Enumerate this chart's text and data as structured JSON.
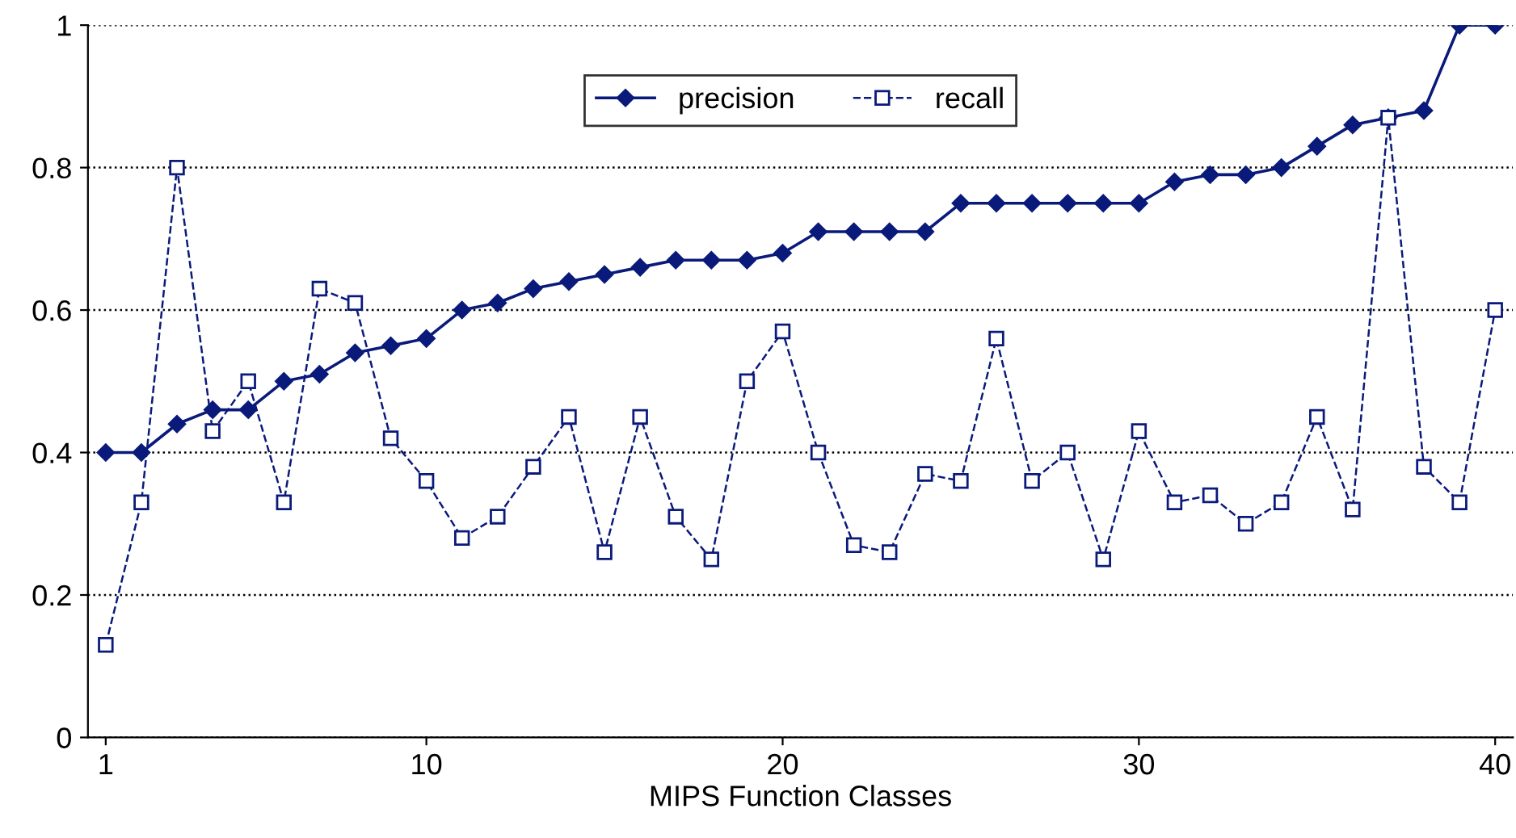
{
  "chart_data": {
    "type": "line",
    "xlabel": "MIPS Function Classes",
    "x": [
      1,
      2,
      3,
      4,
      5,
      6,
      7,
      8,
      9,
      10,
      11,
      12,
      13,
      14,
      15,
      16,
      17,
      18,
      19,
      20,
      21,
      22,
      23,
      24,
      25,
      26,
      27,
      28,
      29,
      30,
      31,
      32,
      33,
      34,
      35,
      36,
      37,
      38,
      39,
      40
    ],
    "series": [
      {
        "name": "precision",
        "color": "#0a1a7a",
        "marker": "diamond",
        "line_style": "solid",
        "values": [
          0.4,
          0.4,
          0.44,
          0.46,
          0.46,
          0.5,
          0.51,
          0.54,
          0.55,
          0.56,
          0.6,
          0.61,
          0.63,
          0.64,
          0.65,
          0.66,
          0.67,
          0.67,
          0.67,
          0.68,
          0.71,
          0.71,
          0.71,
          0.71,
          0.75,
          0.75,
          0.75,
          0.75,
          0.75,
          0.75,
          0.78,
          0.79,
          0.79,
          0.8,
          0.83,
          0.86,
          0.87,
          0.88,
          1.0,
          1.0
        ]
      },
      {
        "name": "recall",
        "color": "#0a1a7a",
        "marker": "square",
        "line_style": "dashed",
        "values": [
          0.13,
          0.33,
          0.8,
          0.43,
          0.5,
          0.33,
          0.63,
          0.61,
          0.42,
          0.36,
          0.28,
          0.31,
          0.38,
          0.45,
          0.26,
          0.45,
          0.31,
          0.25,
          0.5,
          0.57,
          0.4,
          0.27,
          0.26,
          0.37,
          0.36,
          0.56,
          0.36,
          0.4,
          0.25,
          0.43,
          0.33,
          0.34,
          0.3,
          0.33,
          0.45,
          0.32,
          0.87,
          0.38,
          0.33,
          0.6
        ]
      }
    ],
    "xlim": [
      0.5,
      40.5
    ],
    "xticks": [
      1,
      10,
      20,
      30,
      40
    ],
    "ylim": [
      0,
      1
    ],
    "yticks": [
      0,
      0.2,
      0.4,
      0.6,
      0.8,
      1
    ],
    "grid": "y",
    "legend": "top"
  }
}
